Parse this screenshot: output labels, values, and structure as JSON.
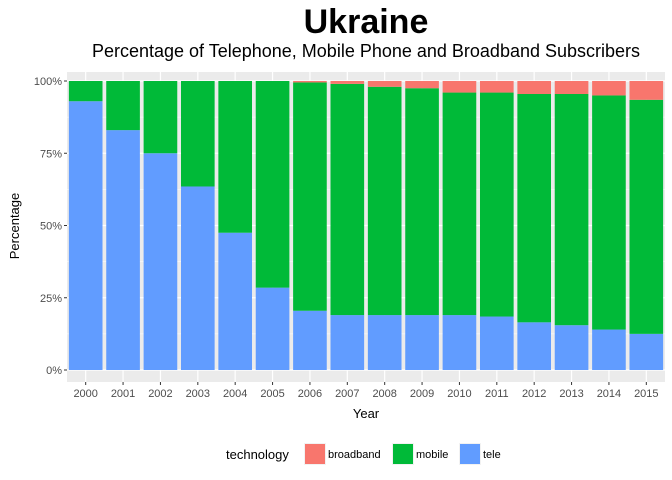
{
  "chart_data": {
    "type": "bar",
    "stacked": true,
    "title": "Ukraine",
    "subtitle": "Percentage of Telephone, Mobile Phone and Broadband Subscribers",
    "xlabel": "Year",
    "ylabel": "Percentage",
    "ylim": [
      0,
      1
    ],
    "y_ticks": [
      0,
      0.25,
      0.5,
      0.75,
      1.0
    ],
    "y_tick_labels": [
      "0%",
      "25%",
      "50%",
      "75%",
      "100%"
    ],
    "grid": true,
    "legend_position": "bottom",
    "legend_title": "technology",
    "categories": [
      "2000",
      "2001",
      "2002",
      "2003",
      "2004",
      "2005",
      "2006",
      "2007",
      "2008",
      "2009",
      "2010",
      "2011",
      "2012",
      "2013",
      "2014",
      "2015"
    ],
    "series": [
      {
        "name": "tele",
        "color": "#619CFF",
        "values": [
          0.93,
          0.83,
          0.75,
          0.635,
          0.475,
          0.285,
          0.205,
          0.19,
          0.19,
          0.19,
          0.19,
          0.185,
          0.165,
          0.155,
          0.14,
          0.125
        ]
      },
      {
        "name": "mobile",
        "color": "#00BA38",
        "values": [
          0.07,
          0.17,
          0.25,
          0.365,
          0.525,
          0.715,
          0.79,
          0.8,
          0.79,
          0.785,
          0.77,
          0.775,
          0.79,
          0.8,
          0.81,
          0.81
        ]
      },
      {
        "name": "broadband",
        "color": "#F8766D",
        "values": [
          0.0,
          0.0,
          0.0,
          0.0,
          0.0,
          0.0,
          0.005,
          0.01,
          0.02,
          0.025,
          0.04,
          0.04,
          0.045,
          0.045,
          0.05,
          0.065
        ]
      }
    ],
    "legend_order": [
      "broadband",
      "mobile",
      "tele"
    ]
  }
}
